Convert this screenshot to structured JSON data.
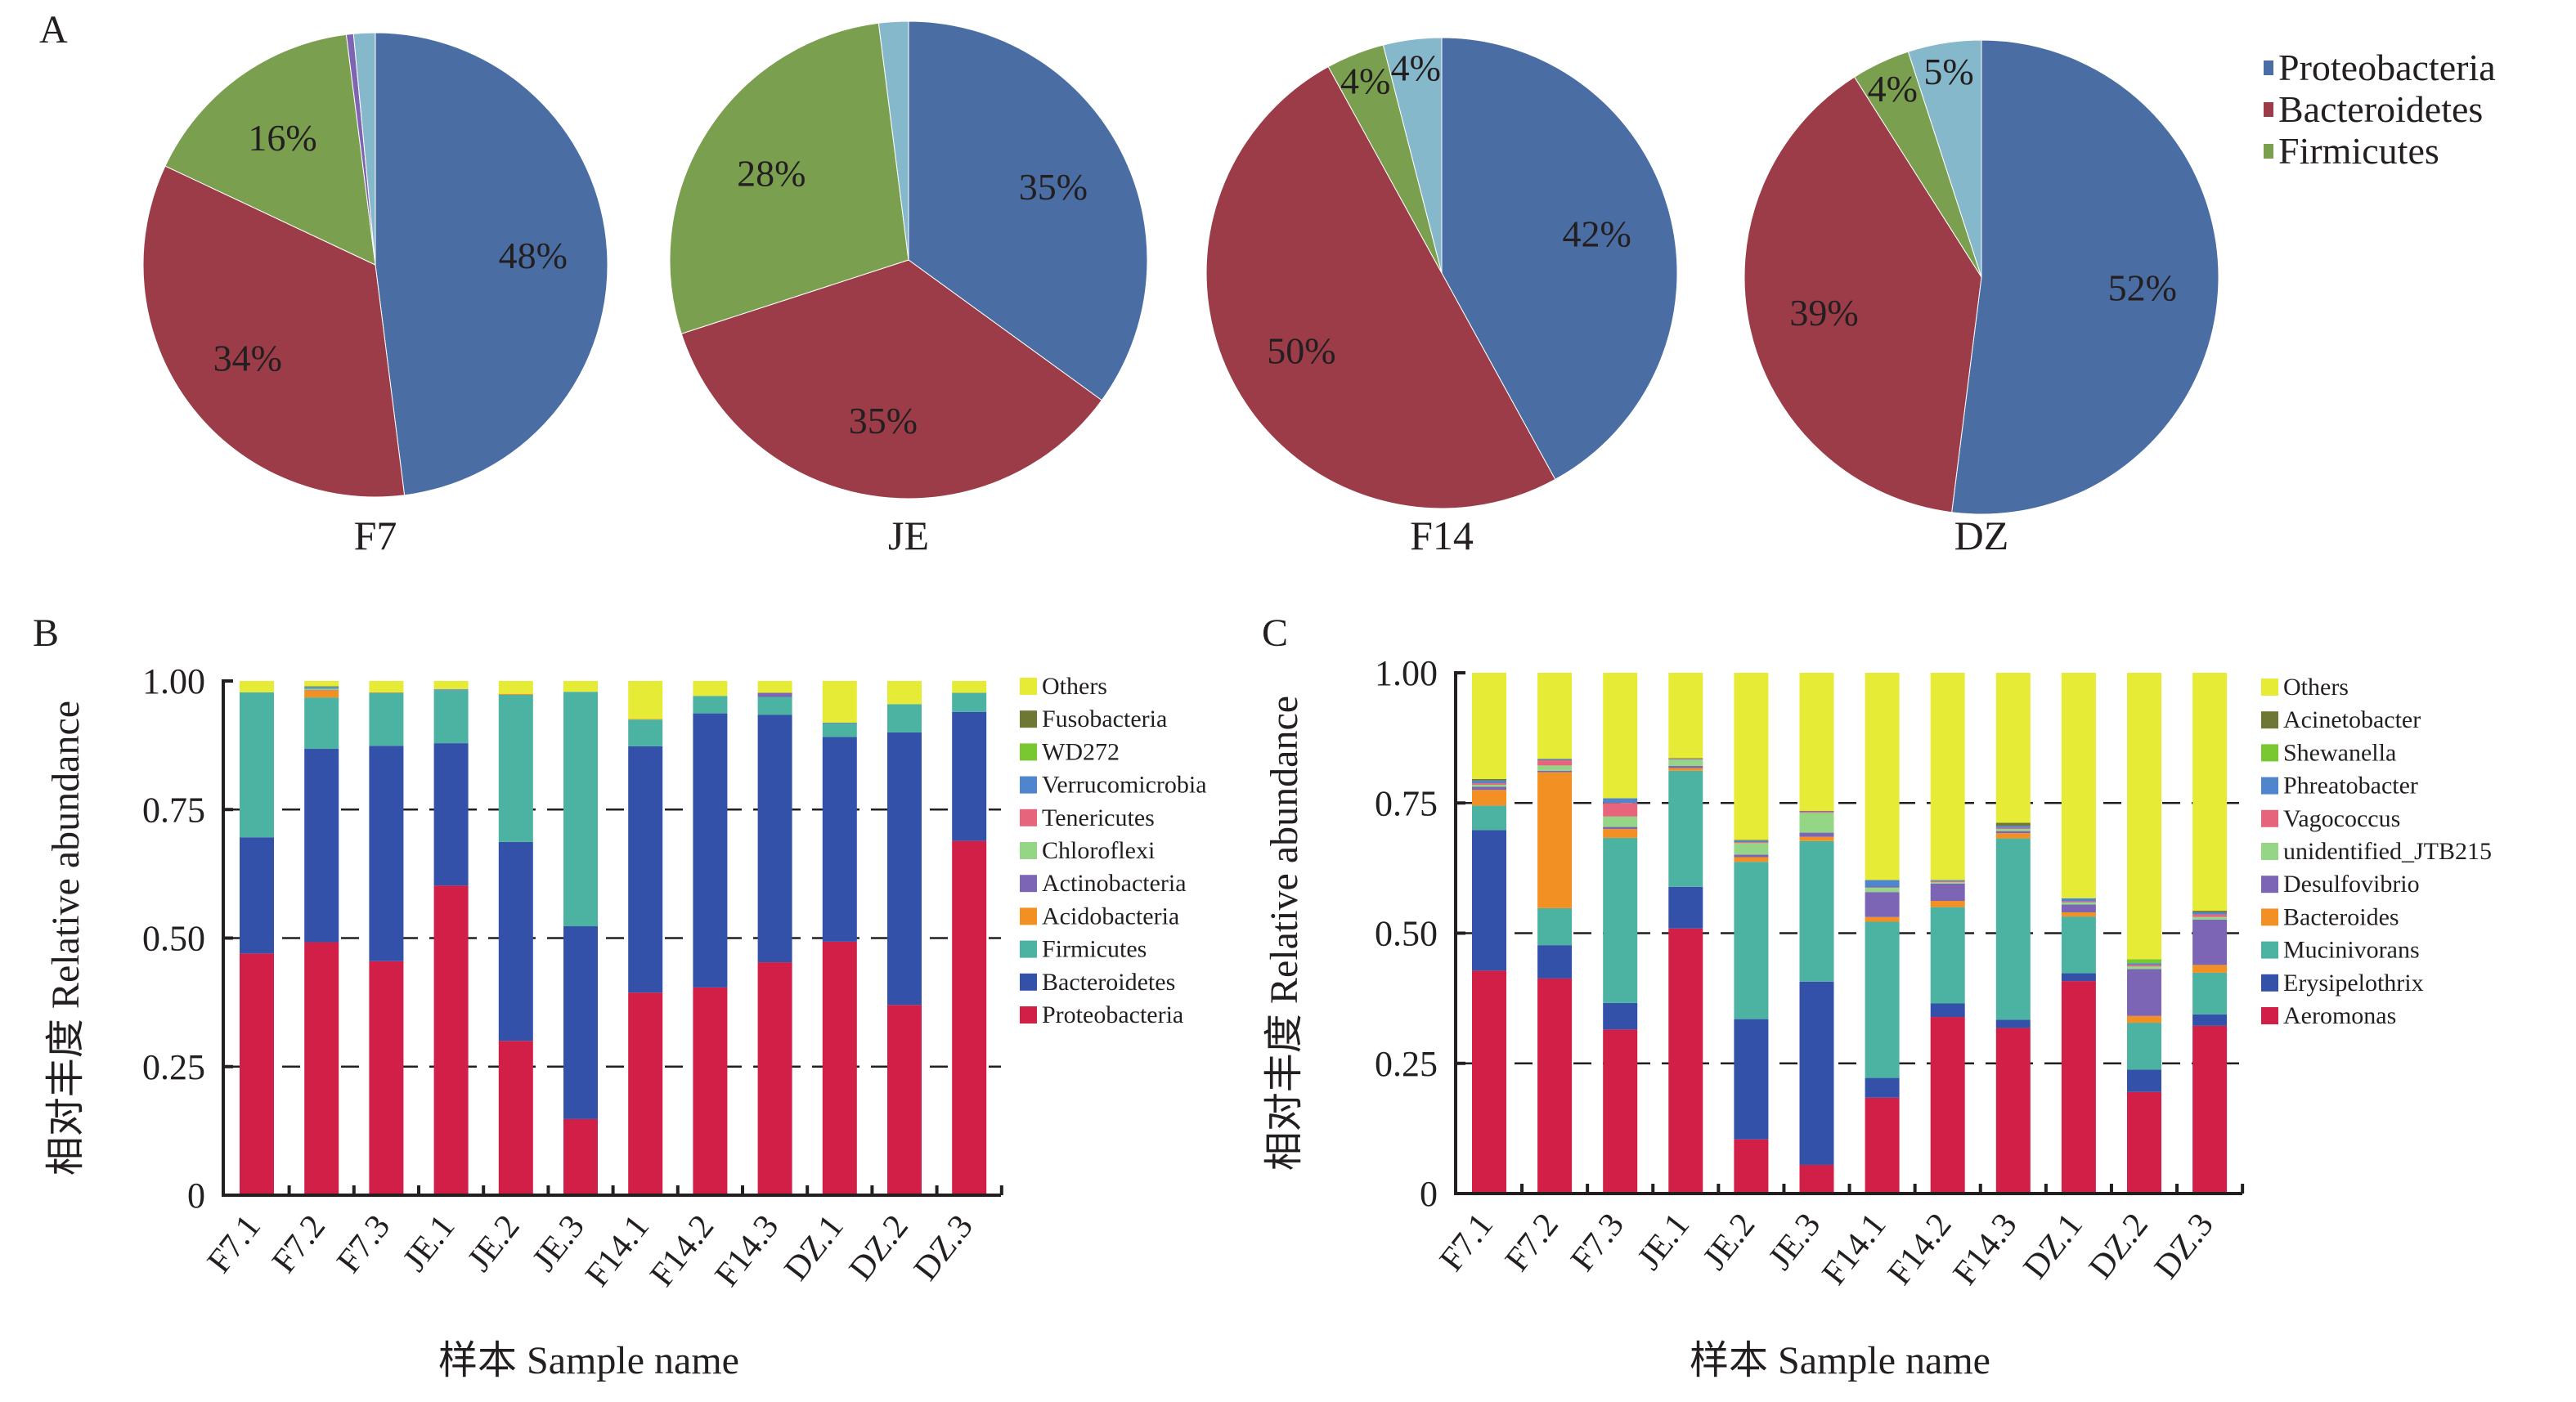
{
  "chart_data": [
    {
      "panel": "A",
      "type": "pie",
      "title": "",
      "legend": {
        "placement": "top-right",
        "entries": [
          "Proteobacteria",
          "Bacteroidetes",
          "Firmicutes"
        ]
      },
      "colors": {
        "Proteobacteria": "#4a6da3",
        "Bacteroidetes": "#9b3c48",
        "Firmicutes": "#7aa04f",
        "Minor": "#7f64b1",
        "Others": "#86b8cc"
      },
      "pies": [
        {
          "name": "F7",
          "slices": [
            {
              "label": "Proteobacteria",
              "value": 48,
              "text": "48%"
            },
            {
              "label": "Bacteroidetes",
              "value": 34,
              "text": "34%"
            },
            {
              "label": "Firmicutes",
              "value": 16,
              "text": "16%"
            },
            {
              "label": "Minor",
              "value": 0.5,
              "text": ""
            },
            {
              "label": "Others",
              "value": 1.5,
              "text": ""
            }
          ]
        },
        {
          "name": "JE",
          "slices": [
            {
              "label": "Proteobacteria",
              "value": 35,
              "text": "35%"
            },
            {
              "label": "Bacteroidetes",
              "value": 35,
              "text": "35%"
            },
            {
              "label": "Firmicutes",
              "value": 28,
              "text": "28%"
            },
            {
              "label": "Others",
              "value": 2,
              "text": ""
            }
          ]
        },
        {
          "name": "F14",
          "slices": [
            {
              "label": "Proteobacteria",
              "value": 42,
              "text": "42%"
            },
            {
              "label": "Bacteroidetes",
              "value": 50,
              "text": "50%"
            },
            {
              "label": "Firmicutes",
              "value": 4,
              "text": "4%"
            },
            {
              "label": "Others",
              "value": 4,
              "text": "4%"
            }
          ]
        },
        {
          "name": "DZ",
          "slices": [
            {
              "label": "Proteobacteria",
              "value": 52,
              "text": "52%"
            },
            {
              "label": "Bacteroidetes",
              "value": 39,
              "text": "39%"
            },
            {
              "label": "Firmicutes",
              "value": 4,
              "text": "4%"
            },
            {
              "label": "Others",
              "value": 5,
              "text": "5%"
            }
          ]
        }
      ]
    },
    {
      "panel": "B",
      "type": "bar",
      "stacked": true,
      "xlabel": "样本 Sample name",
      "ylabel": "相对丰度 Relative abundance",
      "ylim": [
        0,
        1
      ],
      "yticks": [
        "0",
        "0.25",
        "0.50",
        "0.75",
        "1.00"
      ],
      "grid": "dashed horizontal at 0.25, 0.50, 0.75",
      "categories": [
        "F7.1",
        "F7.2",
        "F7.3",
        "JE.1",
        "JE.2",
        "JE.3",
        "F14.1",
        "F14.2",
        "F14.3",
        "DZ.1",
        "DZ.2",
        "DZ.3"
      ],
      "legend": {
        "placement": "right"
      },
      "series": [
        {
          "name": "Proteobacteria",
          "color": "#d11f47",
          "values": [
            0.47,
            0.492,
            0.455,
            0.602,
            0.3,
            0.148,
            0.394,
            0.404,
            0.453,
            0.493,
            0.37,
            0.689
          ]
        },
        {
          "name": "Bacteroidetes",
          "color": "#3451a9",
          "values": [
            0.226,
            0.376,
            0.419,
            0.277,
            0.387,
            0.375,
            0.479,
            0.533,
            0.481,
            0.398,
            0.53,
            0.251
          ]
        },
        {
          "name": "Firmicutes",
          "color": "#4cb2a2",
          "values": [
            0.282,
            0.1,
            0.103,
            0.103,
            0.286,
            0.456,
            0.052,
            0.034,
            0.035,
            0.027,
            0.055,
            0.037
          ]
        },
        {
          "name": "Acidobacteria",
          "color": "#f39024",
          "values": [
            0.0,
            0.014,
            0.001,
            0.0,
            0.002,
            0.0,
            0.001,
            0.0,
            0.0,
            0.0,
            0.0,
            0.0
          ]
        },
        {
          "name": "Actinobacteria",
          "color": "#7d65b6",
          "values": [
            0.0,
            0.001,
            0.0,
            0.001,
            0.0,
            0.0,
            0.0,
            0.0,
            0.008,
            0.001,
            0.0,
            0.0
          ]
        },
        {
          "name": "Chloroflexi",
          "color": "#94d685",
          "values": [
            0.0,
            0.002,
            0.0,
            0.0,
            0.0,
            0.0,
            0.0,
            0.0,
            0.0,
            0.0,
            0.0,
            0.0
          ]
        },
        {
          "name": "Tenericutes",
          "color": "#e6657c",
          "values": [
            0.0,
            0.0,
            0.0,
            0.0,
            0.0,
            0.0,
            0.0,
            0.0,
            0.0,
            0.0,
            0.0,
            0.0
          ]
        },
        {
          "name": "Verrucomicrobia",
          "color": "#4f85cc",
          "values": [
            0.0,
            0.003,
            0.0,
            0.001,
            0.0,
            0.0,
            0.0,
            0.0,
            0.0,
            0.0,
            0.0,
            0.0
          ]
        },
        {
          "name": "WD272",
          "color": "#79c832",
          "values": [
            0.0,
            0.001,
            0.0,
            0.0,
            0.0,
            0.0,
            0.0,
            0.0,
            0.0,
            0.0,
            0.0,
            0.0
          ]
        },
        {
          "name": "Fusobacteria",
          "color": "#6e7734",
          "values": [
            0.0,
            0.001,
            0.0,
            0.0,
            0.0,
            0.0,
            0.0,
            0.0,
            0.0,
            0.0,
            0.0,
            0.0
          ]
        },
        {
          "name": "Others",
          "color": "#e6ec36",
          "values": [
            0.022,
            0.01,
            0.022,
            0.016,
            0.025,
            0.021,
            0.074,
            0.029,
            0.023,
            0.081,
            0.045,
            0.023
          ]
        }
      ]
    },
    {
      "panel": "C",
      "type": "bar",
      "stacked": true,
      "xlabel": "样本 Sample name",
      "ylabel": "相对丰度 Relative abundance",
      "ylim": [
        0,
        1
      ],
      "yticks": [
        "0",
        "0.25",
        "0.50",
        "0.75",
        "1.00"
      ],
      "grid": "dashed horizontal at 0.25, 0.50, 0.75",
      "categories": [
        "F7.1",
        "F7.2",
        "F7.3",
        "JE.1",
        "JE.2",
        "JE.3",
        "F14.1",
        "F14.2",
        "F14.3",
        "DZ.1",
        "DZ.2",
        "DZ.3"
      ],
      "legend": {
        "placement": "right"
      },
      "series": [
        {
          "name": "Aeromonas",
          "color": "#d11f47",
          "values": [
            0.428,
            0.413,
            0.315,
            0.509,
            0.104,
            0.055,
            0.184,
            0.339,
            0.318,
            0.408,
            0.195,
            0.322
          ]
        },
        {
          "name": "Erysipelothrix",
          "color": "#3451a9",
          "values": [
            0.27,
            0.064,
            0.051,
            0.08,
            0.231,
            0.352,
            0.038,
            0.026,
            0.016,
            0.015,
            0.043,
            0.022
          ]
        },
        {
          "name": "Mucinivorans",
          "color": "#4cb2a2",
          "values": [
            0.047,
            0.071,
            0.317,
            0.223,
            0.302,
            0.27,
            0.3,
            0.185,
            0.348,
            0.109,
            0.09,
            0.08
          ]
        },
        {
          "name": "Bacteroides",
          "color": "#f39024",
          "values": [
            0.03,
            0.261,
            0.017,
            0.005,
            0.009,
            0.008,
            0.009,
            0.012,
            0.01,
            0.008,
            0.013,
            0.015
          ]
        },
        {
          "name": "Desulfovibrio",
          "color": "#7d65b6",
          "values": [
            0.006,
            0.003,
            0.004,
            0.004,
            0.005,
            0.008,
            0.048,
            0.033,
            0.004,
            0.015,
            0.09,
            0.087
          ]
        },
        {
          "name": "unidentified_JTB215",
          "color": "#94d685",
          "values": [
            0.004,
            0.01,
            0.02,
            0.012,
            0.022,
            0.038,
            0.008,
            0.003,
            0.004,
            0.004,
            0.005,
            0.005
          ]
        },
        {
          "name": "Vagococcus",
          "color": "#e6657c",
          "values": [
            0.003,
            0.01,
            0.026,
            0.001,
            0.002,
            0.002,
            0.001,
            0.002,
            0.002,
            0.002,
            0.003,
            0.005
          ]
        },
        {
          "name": "Phreatobacter",
          "color": "#4f85cc",
          "values": [
            0.005,
            0.002,
            0.009,
            0.001,
            0.003,
            0.001,
            0.014,
            0.002,
            0.004,
            0.006,
            0.003,
            0.004
          ]
        },
        {
          "name": "Shewanella",
          "color": "#79c832",
          "values": [
            0.0,
            0.0,
            0.0,
            0.0,
            0.0,
            0.0,
            0.0,
            0.0,
            0.0,
            0.0,
            0.008,
            0.0
          ]
        },
        {
          "name": "Acinetobacter",
          "color": "#6e7734",
          "values": [
            0.003,
            0.001,
            0.0,
            0.001,
            0.001,
            0.001,
            0.0,
            0.0,
            0.006,
            0.0,
            0.0,
            0.003
          ]
        },
        {
          "name": "Others",
          "color": "#e6ec36",
          "values": [
            0.204,
            0.165,
            0.241,
            0.164,
            0.321,
            0.265,
            0.398,
            0.398,
            0.288,
            0.433,
            0.55,
            0.457
          ]
        }
      ]
    }
  ],
  "panels": {
    "a": "A",
    "b": "B",
    "c": "C"
  },
  "legendA": [
    "Proteobacteria",
    "Bacteroidetes",
    "Firmicutes"
  ],
  "legendB": [
    "Others",
    "Fusobacteria",
    "WD272",
    "Verrucomicrobia",
    "Tenericutes",
    "Chloroflexi",
    "Actinobacteria",
    "Acidobacteria",
    "Firmicutes",
    "Bacteroidetes",
    "Proteobacteria"
  ],
  "legendC": [
    "Others",
    "Acinetobacter",
    "Shewanella",
    "Phreatobacter",
    "Vagococcus",
    "unidentified_JTB215",
    "Desulfovibrio",
    "Bacteroides",
    "Mucinivorans",
    "Erysipelothrix",
    "Aeromonas"
  ]
}
